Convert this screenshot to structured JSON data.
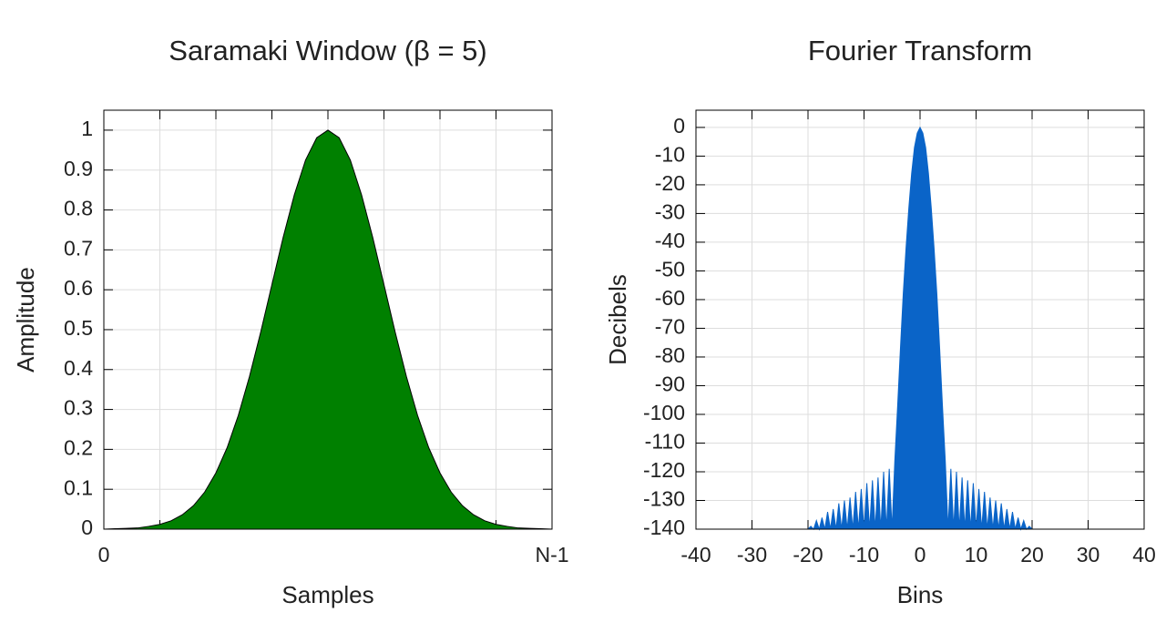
{
  "chart_data": [
    {
      "type": "area",
      "title": "Saramaki Window (β = 5)",
      "xlabel": "Samples",
      "ylabel": "Amplitude",
      "x": [
        0,
        1,
        2,
        3,
        4,
        5,
        6,
        7,
        8,
        9,
        10,
        11,
        12,
        13,
        14,
        15,
        16,
        17,
        18,
        19,
        20,
        21,
        22,
        23,
        24,
        25,
        26,
        27,
        28,
        29,
        30,
        31,
        32,
        33,
        34,
        35,
        36,
        37,
        38,
        39,
        40
      ],
      "values": [
        0.0,
        0.001,
        0.002,
        0.003,
        0.007,
        0.012,
        0.021,
        0.036,
        0.059,
        0.093,
        0.141,
        0.204,
        0.285,
        0.383,
        0.494,
        0.613,
        0.731,
        0.838,
        0.925,
        0.981,
        1,
        0.981,
        0.925,
        0.838,
        0.731,
        0.613,
        0.494,
        0.383,
        0.285,
        0.204,
        0.141,
        0.093,
        0.059,
        0.036,
        0.021,
        0.012,
        0.007,
        0.003,
        0.002,
        0.001,
        0.0
      ],
      "color": "#008000",
      "edgecolor": "#000000",
      "xlim": [
        0,
        40
      ],
      "xticks": [
        0,
        {
          "value": 40,
          "label": "N-1"
        }
      ],
      "ylim": [
        0,
        1.05
      ],
      "yticks": [
        0,
        0.1,
        0.2,
        0.3,
        0.4,
        0.5,
        0.6,
        0.7,
        0.8,
        0.9,
        1
      ],
      "grid": true
    },
    {
      "type": "area",
      "title": "Fourier Transform",
      "xlabel": "Bins",
      "ylabel": "Decibels",
      "x": [
        -20,
        -19.5,
        -19,
        -18.5,
        -18,
        -17.5,
        -17,
        -16.5,
        -16,
        -15.5,
        -15,
        -14.5,
        -14,
        -13.5,
        -13,
        -12.5,
        -12,
        -11.5,
        -11,
        -10.5,
        -10,
        -9.5,
        -9,
        -8.5,
        -8,
        -7.5,
        -7,
        -6.5,
        -6,
        -5.5,
        -5,
        -4.5,
        -4,
        -3.5,
        -3,
        -2.5,
        -2,
        -1.5,
        -1,
        -0.5,
        0,
        0.5,
        1,
        1.5,
        2,
        2.5,
        3,
        3.5,
        4,
        4.5,
        5,
        5.5,
        6,
        6.5,
        7,
        7.5,
        8,
        8.5,
        9,
        9.5,
        10,
        10.5,
        11,
        11.5,
        12,
        12.5,
        13,
        13.5,
        14,
        14.5,
        15,
        15.5,
        16,
        16.5,
        17,
        17.5,
        18,
        18.5,
        19,
        19.5,
        20
      ],
      "values": [
        -140,
        -139,
        -140,
        -137,
        -140,
        -136,
        -140,
        -134,
        -140,
        -133,
        -140,
        -131,
        -140,
        -130,
        -140,
        -129,
        -140,
        -127,
        -140,
        -126,
        -140,
        -124,
        -140,
        -123,
        -140,
        -122,
        -140,
        -120,
        -140,
        -119,
        -140,
        -116,
        -97,
        -77,
        -58,
        -42,
        -28,
        -16,
        -7,
        -2,
        0,
        -2,
        -7,
        -16,
        -28,
        -42,
        -58,
        -77,
        -97,
        -116,
        -140,
        -119,
        -140,
        -120,
        -140,
        -122,
        -140,
        -123,
        -140,
        -124,
        -140,
        -126,
        -140,
        -127,
        -140,
        -129,
        -140,
        -130,
        -140,
        -131,
        -140,
        -133,
        -140,
        -134,
        -140,
        -136,
        -140,
        -137,
        -140,
        -139,
        -140
      ],
      "color": "#0a64c8",
      "edgecolor": "#0a64c8",
      "xlim": [
        -40,
        40
      ],
      "xticks": [
        -40,
        -30,
        -20,
        -10,
        0,
        10,
        20,
        30,
        40
      ],
      "ylim": [
        -140,
        6
      ],
      "yticks": [
        0,
        -10,
        -20,
        -30,
        -40,
        -50,
        -60,
        -70,
        -80,
        -90,
        -100,
        -110,
        -120,
        -130,
        -140
      ],
      "grid": true
    }
  ]
}
